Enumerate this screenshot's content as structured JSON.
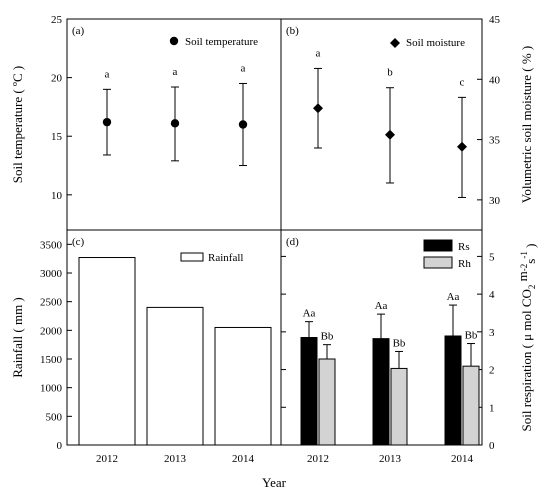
{
  "chart_data": [
    {
      "panel": "(a)",
      "type": "scatter",
      "x": [
        "2012",
        "2013",
        "2014"
      ],
      "series": [
        {
          "name": "Soil temperature",
          "values": [
            16.2,
            16.1,
            16.0
          ],
          "err_low": [
            13.4,
            12.9,
            12.5
          ],
          "err_high": [
            19.0,
            19.2,
            19.5
          ]
        }
      ],
      "sig_labels": [
        "a",
        "a",
        "a"
      ],
      "ylabel": "Soil temperature ( ºC )",
      "ylim": [
        7,
        25
      ],
      "yticks": [
        "10",
        "15",
        "20",
        "25"
      ],
      "legend": "top-right",
      "marker": "circle"
    },
    {
      "panel": "(b)",
      "type": "scatter",
      "x": [
        "2012",
        "2013",
        "2014"
      ],
      "series": [
        {
          "name": "Soil moisture",
          "values": [
            37.6,
            35.4,
            34.4
          ],
          "err_low": [
            34.3,
            31.4,
            30.2
          ],
          "err_high": [
            40.9,
            39.3,
            38.5
          ]
        }
      ],
      "sig_labels": [
        "a",
        "b",
        "c"
      ],
      "ylabel": "Volumetric soil moisture ( % )",
      "ylim": [
        27.5,
        45
      ],
      "yticks": [
        "30",
        "35",
        "40",
        "45"
      ],
      "legend": "top-right",
      "marker": "diamond"
    },
    {
      "panel": "(c)",
      "type": "bar",
      "categories": [
        "2012",
        "2013",
        "2014"
      ],
      "series": [
        {
          "name": "Rainfall",
          "values": [
            3270,
            2400,
            2050
          ]
        }
      ],
      "ylabel": "Rainfall ( mm )",
      "xlabel": "Year",
      "ylim": [
        0,
        3750
      ],
      "yticks": [
        "0",
        "500",
        "1000",
        "1500",
        "2000",
        "2500",
        "3000",
        "3500"
      ],
      "legend": "top-right",
      "bar_color": "#ffffff"
    },
    {
      "panel": "(d)",
      "type": "bar",
      "categories": [
        "2012",
        "2013",
        "2014"
      ],
      "series": [
        {
          "name": "Rs",
          "values": [
            2.85,
            2.82,
            2.89
          ],
          "err": [
            0.42,
            0.65,
            0.82
          ],
          "sig_labels": [
            "Aa",
            "Aa",
            "Aa"
          ],
          "color": "#000000"
        },
        {
          "name": "Rh",
          "values": [
            2.28,
            2.03,
            2.09
          ],
          "err": [
            0.38,
            0.45,
            0.6
          ],
          "sig_labels": [
            "Bb",
            "Bb",
            "Bb"
          ],
          "color": "#d3d3d3"
        }
      ],
      "ylabel": "Soil respiration ( μ mol CO2 m-2 s-1 )",
      "xlabel": "Year",
      "ylim": [
        0,
        5.7
      ],
      "yticks": [
        "0",
        "1",
        "2",
        "3",
        "4",
        "5"
      ],
      "legend": "top-right"
    }
  ],
  "labels": {
    "x_title": "Year",
    "ylabel_d_parts": [
      "Soil respiration ( μ mol CO",
      "2",
      " m",
      "-2",
      "s",
      "-1",
      " )"
    ]
  }
}
